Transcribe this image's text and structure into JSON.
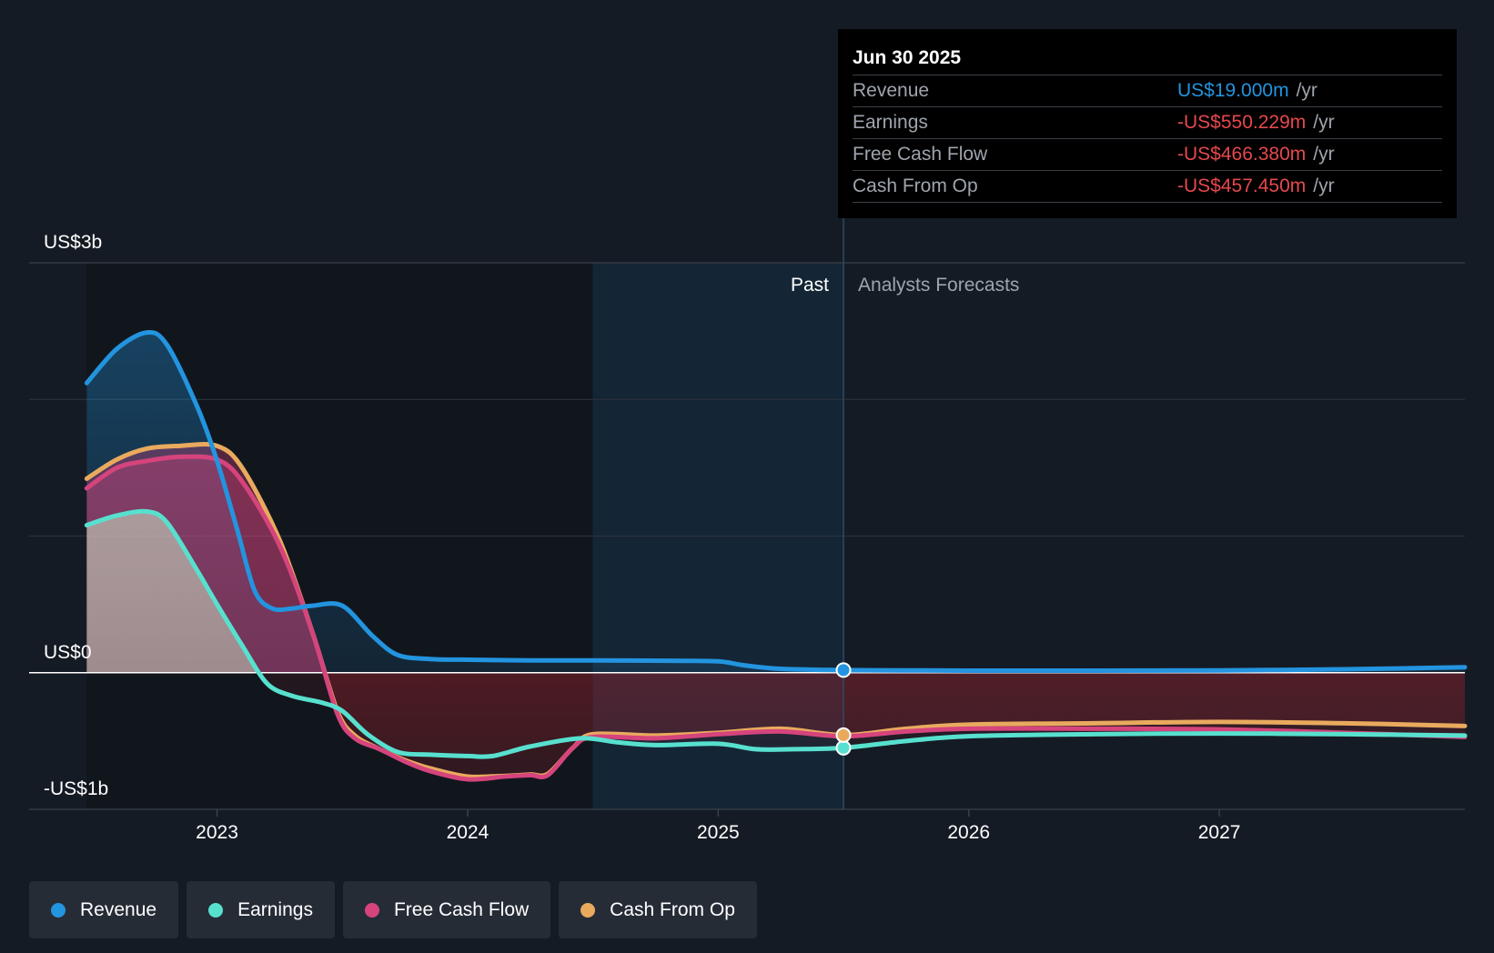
{
  "chart_data": {
    "type": "line",
    "y_unit": "US$b",
    "ylim": [
      -1,
      3
    ],
    "y_tick_labels": [
      "US$3b",
      "US$0",
      "-US$1b"
    ],
    "x_tick_labels": [
      "2023",
      "2024",
      "2025",
      "2026",
      "2027"
    ],
    "x_tick_values": [
      2023,
      2024,
      2025,
      2026,
      2027
    ],
    "xlim": [
      2022.25,
      2027.98
    ],
    "past_label": "Past",
    "forecast_label": "Analysts Forecasts",
    "divider_x": 2025.5,
    "highlight_start_x": 2024.5,
    "series": [
      {
        "name": "Revenue",
        "color": "#2394df",
        "points": [
          [
            2022.48,
            2.12
          ],
          [
            2022.6,
            2.37
          ],
          [
            2022.72,
            2.49
          ],
          [
            2022.8,
            2.4
          ],
          [
            2022.92,
            1.95
          ],
          [
            2023.0,
            1.55
          ],
          [
            2023.08,
            1.05
          ],
          [
            2023.15,
            0.6
          ],
          [
            2023.22,
            0.47
          ],
          [
            2023.3,
            0.47
          ],
          [
            2023.38,
            0.49
          ],
          [
            2023.5,
            0.49
          ],
          [
            2023.62,
            0.27
          ],
          [
            2023.72,
            0.13
          ],
          [
            2023.85,
            0.1
          ],
          [
            2024.0,
            0.095
          ],
          [
            2024.25,
            0.09
          ],
          [
            2024.5,
            0.09
          ],
          [
            2024.8,
            0.087
          ],
          [
            2025.0,
            0.083
          ],
          [
            2025.1,
            0.055
          ],
          [
            2025.25,
            0.028
          ],
          [
            2025.5,
            0.019
          ],
          [
            2025.75,
            0.017
          ],
          [
            2026.0,
            0.015
          ],
          [
            2026.5,
            0.015
          ],
          [
            2027.0,
            0.017
          ],
          [
            2027.5,
            0.025
          ],
          [
            2027.98,
            0.04
          ]
        ]
      },
      {
        "name": "Earnings",
        "color": "#58e0cf",
        "points": [
          [
            2022.48,
            1.08
          ],
          [
            2022.6,
            1.15
          ],
          [
            2022.72,
            1.18
          ],
          [
            2022.8,
            1.1
          ],
          [
            2022.92,
            0.75
          ],
          [
            2023.0,
            0.5
          ],
          [
            2023.1,
            0.2
          ],
          [
            2023.2,
            -0.08
          ],
          [
            2023.3,
            -0.17
          ],
          [
            2023.42,
            -0.22
          ],
          [
            2023.5,
            -0.28
          ],
          [
            2023.6,
            -0.45
          ],
          [
            2023.72,
            -0.58
          ],
          [
            2023.85,
            -0.6
          ],
          [
            2024.0,
            -0.61
          ],
          [
            2024.1,
            -0.61
          ],
          [
            2024.25,
            -0.54
          ],
          [
            2024.45,
            -0.48
          ],
          [
            2024.6,
            -0.51
          ],
          [
            2024.75,
            -0.53
          ],
          [
            2025.0,
            -0.52
          ],
          [
            2025.15,
            -0.56
          ],
          [
            2025.3,
            -0.56
          ],
          [
            2025.5,
            -0.55
          ],
          [
            2025.75,
            -0.5
          ],
          [
            2026.0,
            -0.465
          ],
          [
            2026.5,
            -0.45
          ],
          [
            2027.0,
            -0.445
          ],
          [
            2027.5,
            -0.45
          ],
          [
            2027.98,
            -0.46
          ]
        ]
      },
      {
        "name": "Free Cash Flow",
        "color": "#d5447c",
        "points": [
          [
            2022.48,
            1.35
          ],
          [
            2022.6,
            1.5
          ],
          [
            2022.72,
            1.55
          ],
          [
            2022.85,
            1.58
          ],
          [
            2023.0,
            1.56
          ],
          [
            2023.1,
            1.4
          ],
          [
            2023.25,
            0.93
          ],
          [
            2023.38,
            0.3
          ],
          [
            2023.48,
            -0.3
          ],
          [
            2023.55,
            -0.48
          ],
          [
            2023.65,
            -0.56
          ],
          [
            2023.75,
            -0.65
          ],
          [
            2023.85,
            -0.72
          ],
          [
            2024.0,
            -0.78
          ],
          [
            2024.15,
            -0.76
          ],
          [
            2024.25,
            -0.75
          ],
          [
            2024.32,
            -0.75
          ],
          [
            2024.42,
            -0.55
          ],
          [
            2024.5,
            -0.47
          ],
          [
            2024.75,
            -0.48
          ],
          [
            2025.0,
            -0.45
          ],
          [
            2025.25,
            -0.43
          ],
          [
            2025.5,
            -0.466
          ],
          [
            2025.75,
            -0.43
          ],
          [
            2026.0,
            -0.41
          ],
          [
            2026.5,
            -0.41
          ],
          [
            2027.0,
            -0.415
          ],
          [
            2027.5,
            -0.44
          ],
          [
            2027.98,
            -0.47
          ]
        ]
      },
      {
        "name": "Cash From Op",
        "color": "#e9aa5e",
        "points": [
          [
            2022.48,
            1.42
          ],
          [
            2022.6,
            1.56
          ],
          [
            2022.72,
            1.64
          ],
          [
            2022.85,
            1.66
          ],
          [
            2023.0,
            1.66
          ],
          [
            2023.1,
            1.5
          ],
          [
            2023.25,
            0.97
          ],
          [
            2023.38,
            0.3
          ],
          [
            2023.48,
            -0.28
          ],
          [
            2023.55,
            -0.46
          ],
          [
            2023.65,
            -0.56
          ],
          [
            2023.75,
            -0.64
          ],
          [
            2023.85,
            -0.7
          ],
          [
            2024.0,
            -0.76
          ],
          [
            2024.15,
            -0.755
          ],
          [
            2024.25,
            -0.745
          ],
          [
            2024.32,
            -0.74
          ],
          [
            2024.42,
            -0.55
          ],
          [
            2024.5,
            -0.45
          ],
          [
            2024.75,
            -0.46
          ],
          [
            2025.0,
            -0.44
          ],
          [
            2025.25,
            -0.41
          ],
          [
            2025.5,
            -0.457
          ],
          [
            2025.75,
            -0.41
          ],
          [
            2026.0,
            -0.38
          ],
          [
            2026.5,
            -0.37
          ],
          [
            2027.0,
            -0.36
          ],
          [
            2027.5,
            -0.37
          ],
          [
            2027.98,
            -0.39
          ]
        ]
      }
    ],
    "highlight_points": [
      {
        "series": "Revenue",
        "x": 2025.5,
        "y": 0.019
      },
      {
        "series": "Earnings",
        "x": 2025.5,
        "y": -0.55
      },
      {
        "series": "Cash From Op",
        "x": 2025.5,
        "y": -0.457
      }
    ]
  },
  "tooltip": {
    "date": "Jun 30 2025",
    "rows": [
      {
        "label": "Revenue",
        "value": "US$19.000m",
        "unit": "/yr",
        "color": "#2394df"
      },
      {
        "label": "Earnings",
        "value": "-US$550.229m",
        "unit": "/yr",
        "color": "#e5484d"
      },
      {
        "label": "Free Cash Flow",
        "value": "-US$466.380m",
        "unit": "/yr",
        "color": "#e5484d"
      },
      {
        "label": "Cash From Op",
        "value": "-US$457.450m",
        "unit": "/yr",
        "color": "#e5484d"
      }
    ]
  },
  "legend": [
    {
      "label": "Revenue",
      "color": "#2394df"
    },
    {
      "label": "Earnings",
      "color": "#58e0cf"
    },
    {
      "label": "Free Cash Flow",
      "color": "#d5447c"
    },
    {
      "label": "Cash From Op",
      "color": "#e9aa5e"
    }
  ]
}
